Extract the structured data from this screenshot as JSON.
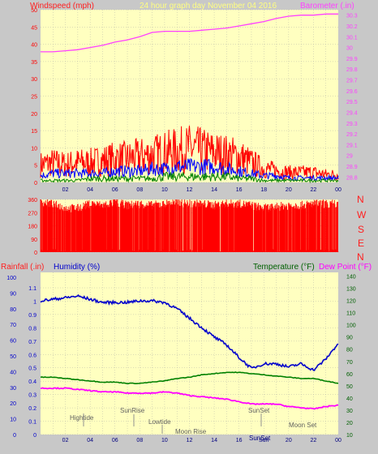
{
  "header": {
    "left_label": "Windspeed (mph)",
    "center_label": "24 hour graph day   November 04 2016",
    "right_label": "Barometer (.in)"
  },
  "bottom_header": {
    "rainfall_label": "Rainfall (.in)",
    "humidity_label": "Humidity (%)",
    "temperature_label": "Temperature (°F)",
    "dewpoint_label": "Dew Point (°F)"
  },
  "compass": [
    "N",
    "W",
    "S",
    "E",
    "N"
  ],
  "annotations": {
    "hightide": "Hightide",
    "sunrise": "SunRise",
    "lowtide": "Lowtide",
    "moonrise": "Moon Rise",
    "sunset": "SunSet",
    "sunset2": "SunSet",
    "moonset": "Moon Set"
  },
  "colors": {
    "background": "#c8c8c8",
    "panel": "#ffffc0",
    "windspeed": "#ff0000",
    "wind_avg": "#0000ff",
    "wind_low": "#008000",
    "barometer": "#ff40ff",
    "direction": "#ff0000",
    "humidity": "#0000cc",
    "temperature": "#008000",
    "dewpoint": "#ff00ff",
    "hour_label": "#000080"
  },
  "chart_data": [
    {
      "type": "line",
      "name": "wind-barometer",
      "x_ticks": [
        "02",
        "04",
        "06",
        "08",
        "10",
        "12",
        "14",
        "16",
        "18",
        "20",
        "22",
        "00"
      ],
      "xlim": [
        0,
        24
      ],
      "y_left_ticks": [
        "0",
        "5",
        "10",
        "15",
        "20",
        "25",
        "30",
        "35",
        "40",
        "45",
        "50"
      ],
      "ylim_left": [
        0,
        50
      ],
      "y_right_ticks": [
        "28.8",
        "28.9",
        "29",
        "29.1",
        "29.2",
        "29.3",
        "29.4",
        "29.5",
        "29.6",
        "29.7",
        "29.8",
        "29.9",
        "30",
        "30.1",
        "30.2",
        "30.3"
      ],
      "ylim_right": [
        28.75,
        30.35
      ],
      "barometer": {
        "x": [
          0,
          1,
          2,
          3,
          4,
          5,
          6,
          7,
          8,
          9,
          10,
          11,
          12,
          13,
          14,
          15,
          16,
          17,
          18,
          19,
          20,
          21,
          22,
          23,
          24
        ],
        "values": [
          29.96,
          29.96,
          29.97,
          29.98,
          30.0,
          30.02,
          30.05,
          30.07,
          30.1,
          30.14,
          30.15,
          30.15,
          30.15,
          30.16,
          30.17,
          30.18,
          30.2,
          30.22,
          30.24,
          30.27,
          30.29,
          30.3,
          30.3,
          30.31,
          30.31
        ]
      },
      "windspeed_envelope": {
        "x": [
          0,
          1,
          2,
          3,
          4,
          5,
          6,
          7,
          8,
          9,
          10,
          11,
          12,
          13,
          14,
          15,
          16,
          17,
          18,
          19,
          20,
          21,
          22,
          23,
          24
        ],
        "gust_max": [
          9,
          10,
          9,
          10,
          10,
          11,
          12,
          12,
          13,
          14,
          15,
          16,
          17,
          16,
          15,
          14,
          13,
          10,
          7,
          6,
          5,
          5,
          5,
          4,
          4
        ],
        "avg": [
          3,
          4,
          4,
          4,
          4,
          4,
          5,
          5,
          5,
          6,
          6,
          7,
          7,
          7,
          7,
          6,
          5,
          4,
          3,
          3,
          2,
          2,
          2,
          2,
          2
        ],
        "low": [
          1,
          1,
          1,
          1,
          2,
          2,
          2,
          2,
          2,
          2,
          3,
          3,
          3,
          3,
          3,
          3,
          2,
          2,
          1,
          1,
          1,
          1,
          1,
          1,
          1
        ]
      }
    },
    {
      "type": "bar",
      "name": "wind-direction",
      "y_ticks": [
        "0",
        "90",
        "180",
        "270",
        "360"
      ],
      "ylim": [
        0,
        360
      ],
      "x": [
        0,
        1,
        2,
        3,
        4,
        5,
        6,
        7,
        8,
        9,
        10,
        11,
        12,
        13,
        14,
        15,
        16,
        17,
        18,
        19,
        20,
        21,
        22,
        23,
        24
      ],
      "dominant_deg": [
        340,
        330,
        300,
        300,
        330,
        320,
        340,
        320,
        330,
        320,
        330,
        340,
        330,
        330,
        320,
        330,
        330,
        320,
        300,
        310,
        320,
        320,
        330,
        330,
        330
      ]
    },
    {
      "type": "line",
      "name": "humidity-temperature",
      "x_ticks": [
        "02",
        "04",
        "06",
        "08",
        "10",
        "12",
        "14",
        "16",
        "Sun",
        "20",
        "22",
        "00"
      ],
      "xlim": [
        0,
        24
      ],
      "y_rain_ticks": [
        "0",
        "0.1",
        "0.2",
        "0.3",
        "0.4",
        "0.5",
        "0.6",
        "0.7",
        "0.8",
        "0.9",
        "1",
        "1.1"
      ],
      "y_humidity_ticks": [
        "0",
        "10",
        "20",
        "30",
        "40",
        "50",
        "60",
        "70",
        "80",
        "90",
        "100"
      ],
      "ylim_humidity": [
        0,
        100
      ],
      "y_temp_ticks": [
        "10",
        "20",
        "30",
        "40",
        "50",
        "60",
        "70",
        "80",
        "90",
        "100",
        "110",
        "120",
        "130",
        "140"
      ],
      "ylim_temp": [
        10,
        143
      ],
      "humidity": {
        "x": [
          0,
          1,
          2,
          3,
          4,
          5,
          6,
          7,
          8,
          9,
          10,
          11,
          12,
          13,
          14,
          15,
          16,
          17,
          18,
          19,
          20,
          21,
          22,
          23,
          24
        ],
        "values": [
          85,
          86,
          87,
          88,
          86,
          84,
          84,
          84,
          85,
          85,
          84,
          80,
          74,
          68,
          62,
          57,
          49,
          42,
          45,
          45,
          43,
          45,
          41,
          48,
          58
        ]
      },
      "temperature": {
        "x": [
          0,
          1,
          2,
          3,
          4,
          5,
          6,
          7,
          8,
          9,
          10,
          11,
          12,
          13,
          14,
          15,
          16,
          17,
          18,
          19,
          20,
          21,
          22,
          23,
          24
        ],
        "values": [
          57,
          57,
          56,
          55,
          54,
          53,
          53,
          52,
          52,
          53,
          54,
          56,
          57,
          59,
          60,
          61,
          61,
          60,
          59,
          58,
          57,
          56,
          56,
          54,
          52
        ]
      },
      "dewpoint": {
        "x": [
          0,
          1,
          2,
          3,
          4,
          5,
          6,
          7,
          8,
          9,
          10,
          11,
          12,
          13,
          14,
          15,
          16,
          17,
          18,
          19,
          20,
          21,
          22,
          23,
          24
        ],
        "values": [
          48,
          48,
          48,
          47,
          46,
          45,
          45,
          44,
          44,
          44,
          45,
          44,
          42,
          41,
          40,
          39,
          37,
          35,
          35,
          35,
          33,
          32,
          31,
          33,
          34
        ]
      }
    }
  ]
}
